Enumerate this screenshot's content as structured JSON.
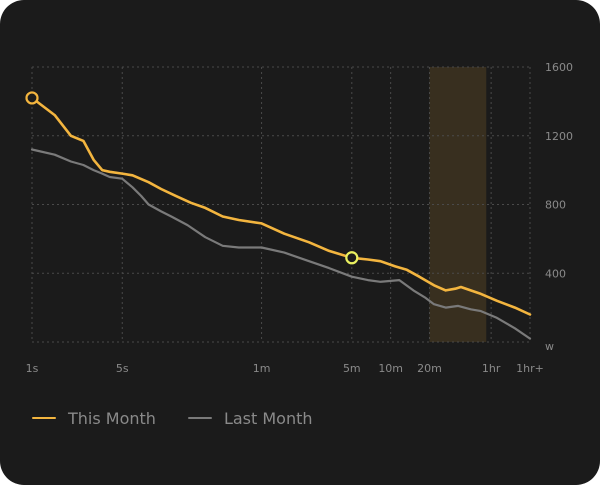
{
  "chart_data": {
    "type": "line",
    "ylabel": "W",
    "y_unit": "w",
    "ylim": [
      0,
      1600
    ],
    "y_ticks": [
      "400",
      "800",
      "1200",
      "1600"
    ],
    "x_scale": "log",
    "xlim": [
      1,
      7200
    ],
    "x_ticks": [
      {
        "label": "1s",
        "seconds": 1
      },
      {
        "label": "5s",
        "seconds": 5
      },
      {
        "label": "1m",
        "seconds": 60
      },
      {
        "label": "5m",
        "seconds": 300
      },
      {
        "label": "10m",
        "seconds": 600
      },
      {
        "label": "20m",
        "seconds": 1200
      },
      {
        "label": "1hr",
        "seconds": 3600
      },
      {
        "label": "1hr+",
        "seconds": 7200
      }
    ],
    "grid": true,
    "legend_position": "bottom-left",
    "highlight_range": [
      1200,
      3300
    ],
    "highlight_color": "#3d3220",
    "series": [
      {
        "name": "This Month",
        "color": "#f3b53f",
        "points": [
          [
            1,
            1420
          ],
          [
            1.5,
            1320
          ],
          [
            2,
            1200
          ],
          [
            2.5,
            1170
          ],
          [
            3,
            1060
          ],
          [
            3.5,
            1000
          ],
          [
            4,
            990
          ],
          [
            5,
            980
          ],
          [
            6,
            970
          ],
          [
            8,
            930
          ],
          [
            10,
            890
          ],
          [
            13,
            850
          ],
          [
            17,
            810
          ],
          [
            22,
            780
          ],
          [
            30,
            730
          ],
          [
            40,
            710
          ],
          [
            60,
            690
          ],
          [
            90,
            630
          ],
          [
            140,
            580
          ],
          [
            200,
            530
          ],
          [
            300,
            490
          ],
          [
            400,
            480
          ],
          [
            500,
            470
          ],
          [
            650,
            440
          ],
          [
            800,
            420
          ],
          [
            1000,
            380
          ],
          [
            1300,
            330
          ],
          [
            1600,
            300
          ],
          [
            1900,
            310
          ],
          [
            2100,
            320
          ],
          [
            2500,
            300
          ],
          [
            3000,
            280
          ],
          [
            4000,
            240
          ],
          [
            5500,
            200
          ],
          [
            7200,
            160
          ]
        ]
      },
      {
        "name": "Last Month",
        "color": "#7a7a7a",
        "points": [
          [
            1,
            1120
          ],
          [
            1.5,
            1090
          ],
          [
            2,
            1050
          ],
          [
            2.5,
            1030
          ],
          [
            3,
            1000
          ],
          [
            3.5,
            980
          ],
          [
            4,
            960
          ],
          [
            5,
            950
          ],
          [
            6,
            900
          ],
          [
            7,
            850
          ],
          [
            8,
            800
          ],
          [
            10,
            760
          ],
          [
            12,
            730
          ],
          [
            16,
            680
          ],
          [
            22,
            610
          ],
          [
            30,
            560
          ],
          [
            40,
            550
          ],
          [
            60,
            550
          ],
          [
            90,
            520
          ],
          [
            140,
            470
          ],
          [
            200,
            430
          ],
          [
            300,
            380
          ],
          [
            400,
            360
          ],
          [
            500,
            350
          ],
          [
            700,
            360
          ],
          [
            900,
            300
          ],
          [
            1100,
            260
          ],
          [
            1300,
            220
          ],
          [
            1600,
            200
          ],
          [
            2000,
            210
          ],
          [
            2500,
            190
          ],
          [
            3000,
            180
          ],
          [
            4000,
            140
          ],
          [
            5500,
            80
          ],
          [
            7200,
            20
          ]
        ]
      }
    ],
    "markers": [
      {
        "series": "This Month",
        "x": 1,
        "y": 1420,
        "color": "#f3b53f",
        "fill": "#1b1b1b"
      },
      {
        "series": "This Month",
        "x": 300,
        "y": 490,
        "color": "#e9f060",
        "fill": "#1b1b1b"
      }
    ]
  },
  "legend": [
    {
      "label": "This Month",
      "color": "#f3b53f"
    },
    {
      "label": "Last Month",
      "color": "#7a7a7a"
    }
  ]
}
